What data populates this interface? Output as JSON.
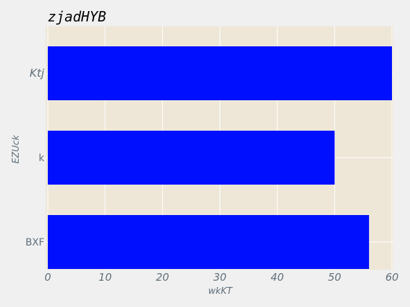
{
  "chart_data": {
    "type": "bar",
    "orientation": "horizontal",
    "title": "zjadHYB",
    "xlabel": "wkKT",
    "ylabel": "EZUck",
    "categories": [
      "Ktj",
      "k",
      "BXF"
    ],
    "category_italic": [
      true,
      false,
      false
    ],
    "values": [
      60,
      50,
      56
    ],
    "xlim": [
      0,
      60
    ],
    "xticks": [
      "0",
      "10",
      "20",
      "30",
      "40",
      "50",
      "60"
    ],
    "grid": true,
    "bar_color": "#0010ff",
    "plot_background": "#eee7d7",
    "figure_background": "#f0f0f0",
    "grid_color": "#ffffff"
  }
}
